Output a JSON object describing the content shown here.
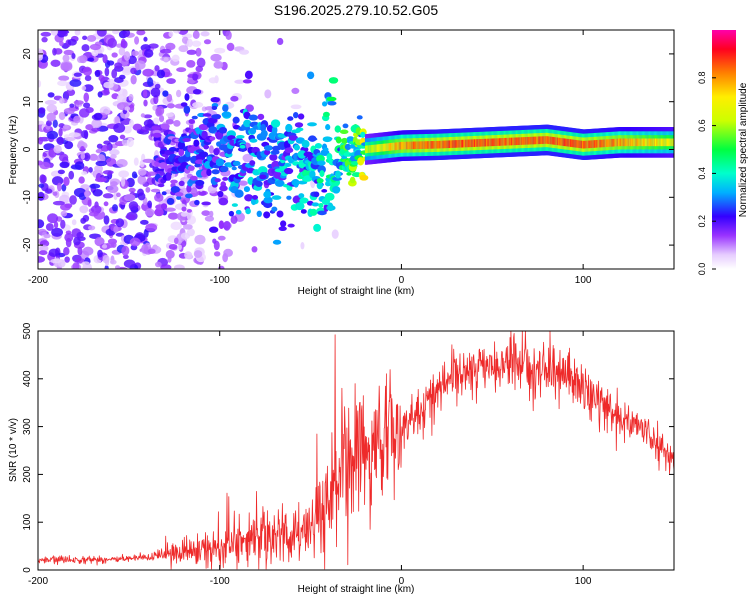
{
  "title": "S196.2025.279.10.52.G05",
  "chart_data": [
    {
      "type": "heatmap",
      "xlabel": "Height of straight line (km)",
      "ylabel": "Frequency (Hz)",
      "xlim": [
        -200,
        150
      ],
      "ylim": [
        -25,
        25
      ],
      "xticks": [
        -200,
        -100,
        0,
        100
      ],
      "xtick_labels": [
        "-200",
        "-100",
        "0",
        "100"
      ],
      "yticks": [
        -20,
        -10,
        0,
        10,
        20
      ],
      "ytick_labels": [
        "-20",
        "-10",
        "0",
        "10",
        "20"
      ],
      "colorbar": {
        "label": "Normalized spectral amplitude",
        "range": [
          0,
          1
        ],
        "ticks": [
          0.0,
          0.2,
          0.4,
          0.6,
          0.8
        ],
        "tick_labels": [
          "0.0",
          "0.2",
          "0.4",
          "0.6",
          "0.8"
        ]
      },
      "ridge": {
        "description_x": [
          -130,
          -110,
          -90,
          -70,
          -50,
          -35,
          -20,
          0,
          20,
          50,
          80,
          100,
          120,
          150
        ],
        "freq": [
          0,
          0.5,
          -1,
          -3,
          -4,
          -2,
          0,
          0.8,
          1,
          1.5,
          2,
          1,
          1.5,
          1.5
        ],
        "amplitude": [
          0.2,
          0.25,
          0.3,
          0.3,
          0.35,
          0.4,
          0.6,
          0.8,
          0.85,
          0.85,
          0.85,
          0.85,
          0.8,
          0.7
        ]
      }
    },
    {
      "type": "line",
      "xlabel": "Height of straight line (km)",
      "ylabel": "SNR (10 * v/v)",
      "xlim": [
        -200,
        150
      ],
      "ylim": [
        0,
        500
      ],
      "xticks": [
        -200,
        -100,
        0,
        100
      ],
      "xtick_labels": [
        "-200",
        "-100",
        "0",
        "100"
      ],
      "yticks": [
        0,
        100,
        200,
        300,
        400,
        500
      ],
      "ytick_labels": [
        "0",
        "100",
        "200",
        "300",
        "400",
        "500"
      ],
      "color": "#ee2a2a",
      "series": [
        {
          "name": "SNR",
          "x": [
            -200,
            -180,
            -160,
            -140,
            -125,
            -110,
            -100,
            -90,
            -80,
            -70,
            -60,
            -50,
            -40,
            -30,
            -20,
            -15,
            -10,
            0,
            10,
            20,
            30,
            40,
            50,
            60,
            70,
            80,
            90,
            100,
            110,
            120,
            130,
            140,
            150
          ],
          "y": [
            20,
            22,
            22,
            25,
            35,
            40,
            50,
            55,
            65,
            70,
            70,
            90,
            140,
            190,
            230,
            250,
            280,
            300,
            330,
            380,
            410,
            420,
            425,
            430,
            430,
            420,
            410,
            380,
            350,
            320,
            300,
            270,
            230
          ]
        }
      ]
    }
  ]
}
